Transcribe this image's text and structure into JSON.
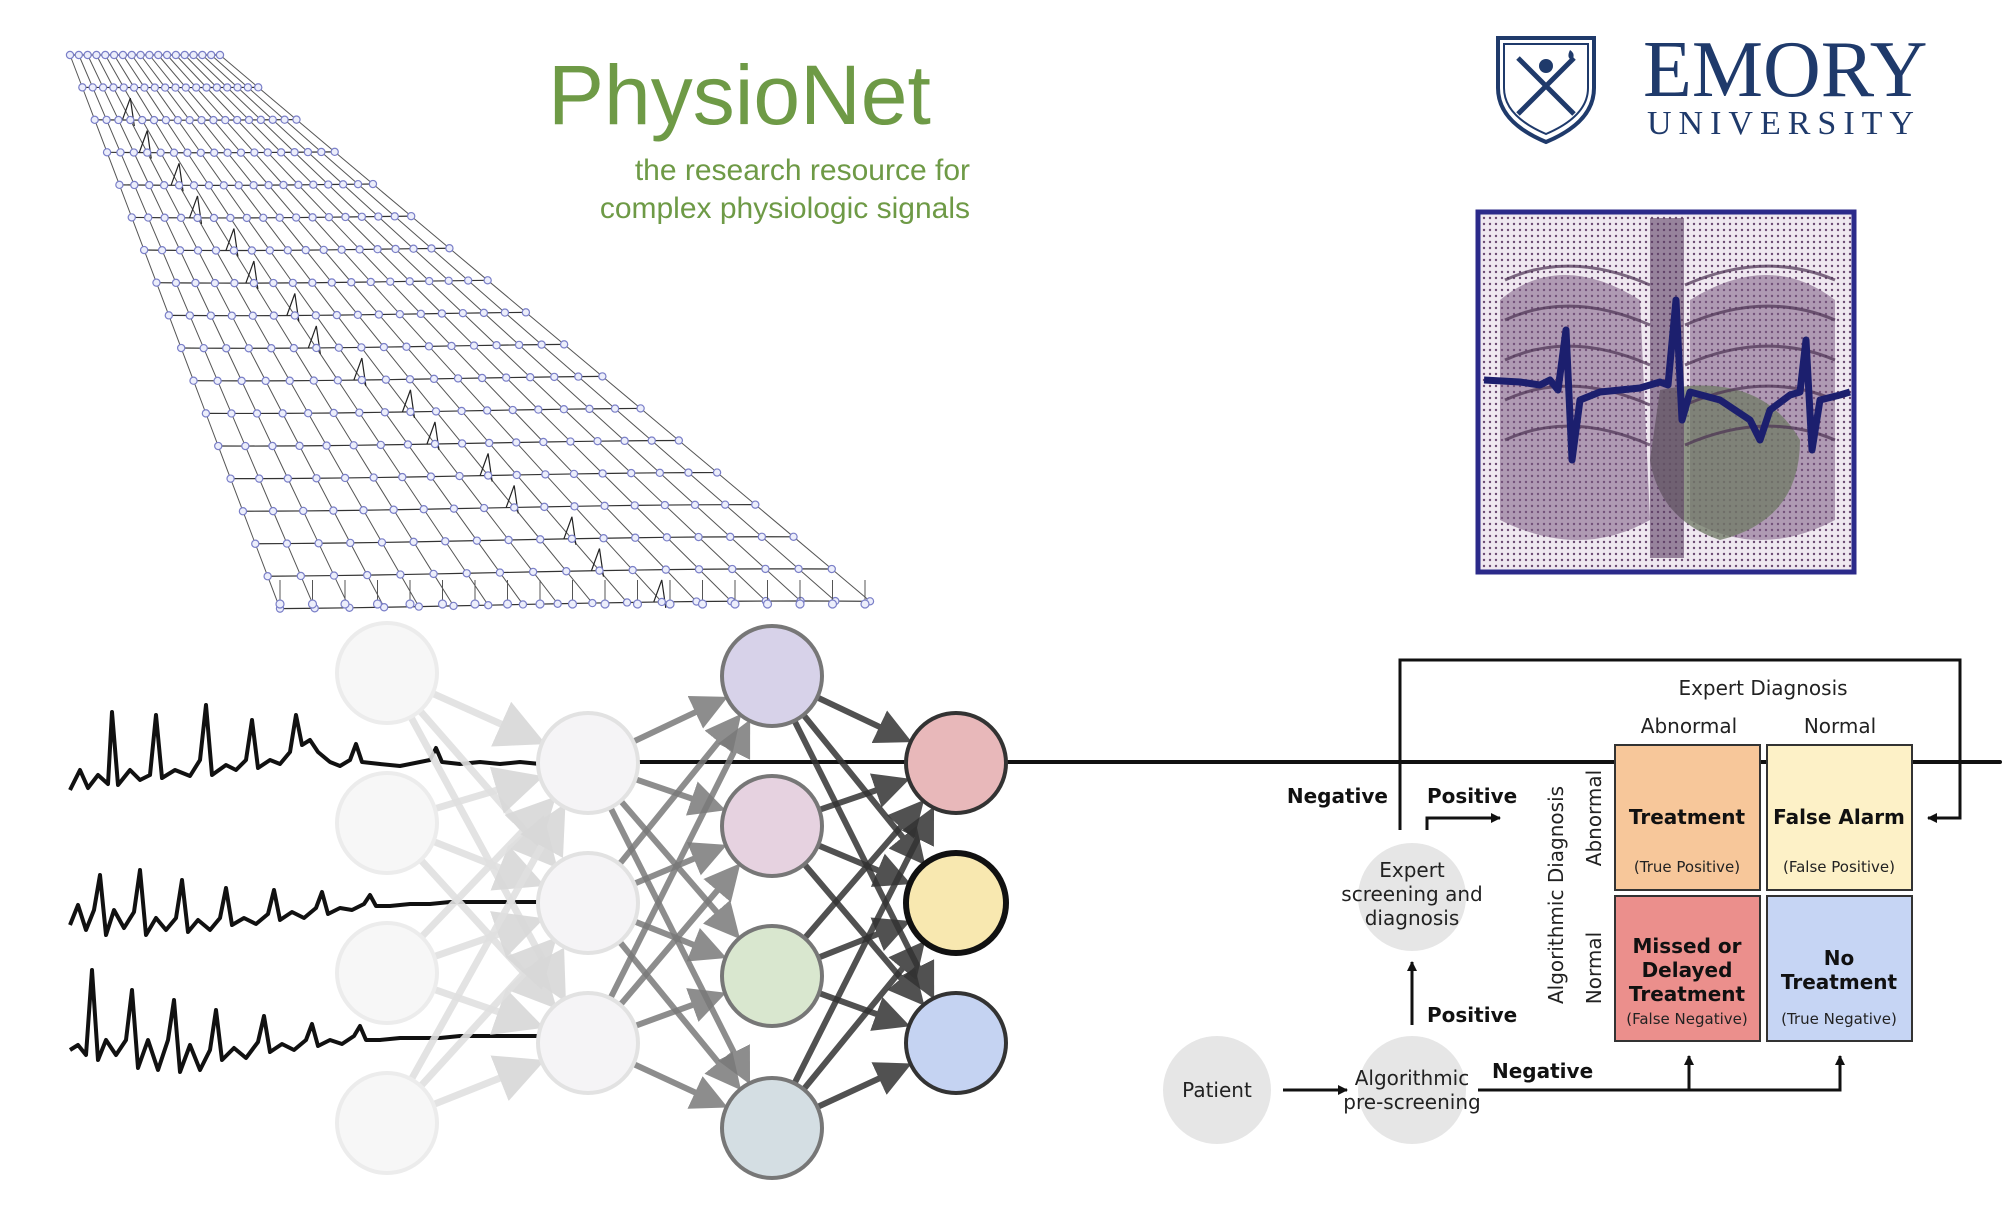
{
  "physionet": {
    "title": "PhysioNet",
    "tagline_line1": "the research resource for",
    "tagline_line2": "complex physiologic signals",
    "color": "#6e9a46"
  },
  "emory": {
    "name": "EMORY",
    "sub": "UNIVERSITY",
    "color": "#1f3a6b"
  },
  "flow": {
    "expert_diagnosis": "Expert Diagnosis",
    "col_abnormal": "Abnormal",
    "col_normal": "Normal",
    "algorithmic_diagnosis": "Algorithmic Diagnosis",
    "row_abnormal": "Abnormal",
    "row_normal": "Normal",
    "negative_top": "Negative",
    "positive_top": "Positive",
    "positive_mid": "Positive",
    "negative_bottom": "Negative",
    "patient": "Patient",
    "expert_l1": "Expert",
    "expert_l2": "screening and",
    "expert_l3": "diagnosis",
    "algo_l1": "Algorithmic",
    "algo_l2": "pre-screening",
    "tp_title": "Treatment",
    "tp_sub": "(True Positive)",
    "fp_title": "False Alarm",
    "fp_sub": "(False Positive)",
    "fn_l1": "Missed or",
    "fn_l2": "Delayed",
    "fn_l3": "Treatment",
    "fn_sub": "(False Negative)",
    "tn_l1": "No",
    "tn_l2": "Treatment",
    "tn_sub": "(True Negative)",
    "colors": {
      "tp": "#f7c79a",
      "fp": "#fdf1c7",
      "fn": "#eb8f8c",
      "tn": "#c6d5f4"
    }
  },
  "network_colors": {
    "layer3": [
      "#d7d2e9",
      "#e6d2e0",
      "#d9e7cf",
      "#d4dee3"
    ],
    "output": [
      "#e8b8ba",
      "#f8e8b0",
      "#c5d3f2"
    ]
  }
}
